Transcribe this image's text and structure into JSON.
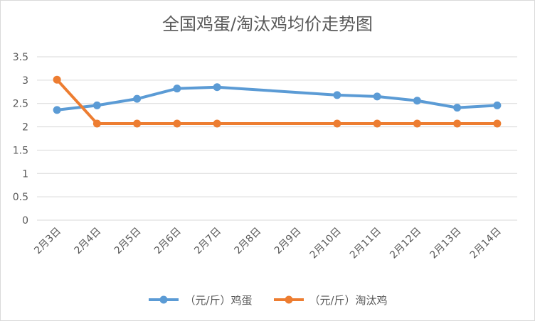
{
  "chart_data": {
    "type": "line",
    "title": "全国鸡蛋/淘汰鸡均价走势图",
    "categories": [
      "2月3日",
      "2月4日",
      "2月5日",
      "2月6日",
      "2月7日",
      "2月8日",
      "2月9日",
      "2月10日",
      "2月11日",
      "2月12日",
      "2月13日",
      "2月14日"
    ],
    "ylim": [
      0,
      3.5
    ],
    "yticks": [
      "0",
      "0.5",
      "1",
      "1.5",
      "2",
      "2.5",
      "3",
      "3.5"
    ],
    "grid": true,
    "legend_position": "bottom",
    "series": [
      {
        "name": "（元/斤）鸡蛋",
        "color": "#5b9bd5",
        "points": [
          [
            0,
            2.36
          ],
          [
            1,
            2.46
          ],
          [
            2,
            2.6
          ],
          [
            3,
            2.82
          ],
          [
            4,
            2.85
          ],
          [
            7,
            2.68
          ],
          [
            8,
            2.65
          ],
          [
            9,
            2.56
          ],
          [
            10,
            2.41
          ],
          [
            11,
            2.46
          ]
        ]
      },
      {
        "name": "（元/斤）淘汰鸡",
        "color": "#ed7d31",
        "points": [
          [
            0,
            3.01
          ],
          [
            1,
            2.07
          ],
          [
            2,
            2.07
          ],
          [
            3,
            2.07
          ],
          [
            4,
            2.07
          ],
          [
            7,
            2.07
          ],
          [
            8,
            2.07
          ],
          [
            9,
            2.07
          ],
          [
            10,
            2.07
          ],
          [
            11,
            2.07
          ]
        ]
      }
    ]
  }
}
